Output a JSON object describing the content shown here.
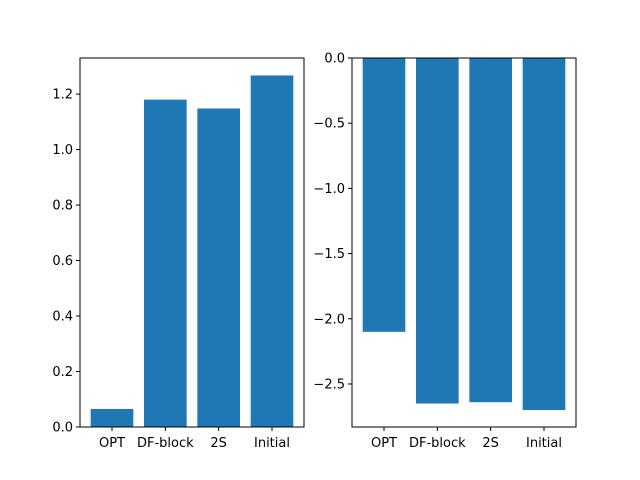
{
  "chart_data": [
    {
      "type": "bar",
      "categories": [
        "OPT",
        "DF-block",
        "2S",
        "Initial"
      ],
      "values": [
        0.065,
        1.18,
        1.148,
        1.267
      ],
      "ylim": [
        0,
        1.33
      ],
      "yticks": [
        0.0,
        0.2,
        0.4,
        0.6,
        0.8,
        1.0,
        1.2
      ],
      "ytick_labels": [
        "0.0",
        "0.2",
        "0.4",
        "0.6",
        "0.8",
        "1.0",
        "1.2"
      ],
      "color": "#1f77b4",
      "grid": false
    },
    {
      "type": "bar",
      "categories": [
        "OPT",
        "DF-block",
        "2S",
        "Initial"
      ],
      "values": [
        -2.1,
        -2.65,
        -2.64,
        -2.7
      ],
      "ylim": [
        -2.83,
        0
      ],
      "yticks": [
        0.0,
        -0.5,
        -1.0,
        -1.5,
        -2.0,
        -2.5
      ],
      "ytick_labels": [
        "0.0",
        "−0.5",
        "−1.0",
        "−1.5",
        "−2.0",
        "−2.5"
      ],
      "color": "#1f77b4",
      "grid": false
    }
  ]
}
